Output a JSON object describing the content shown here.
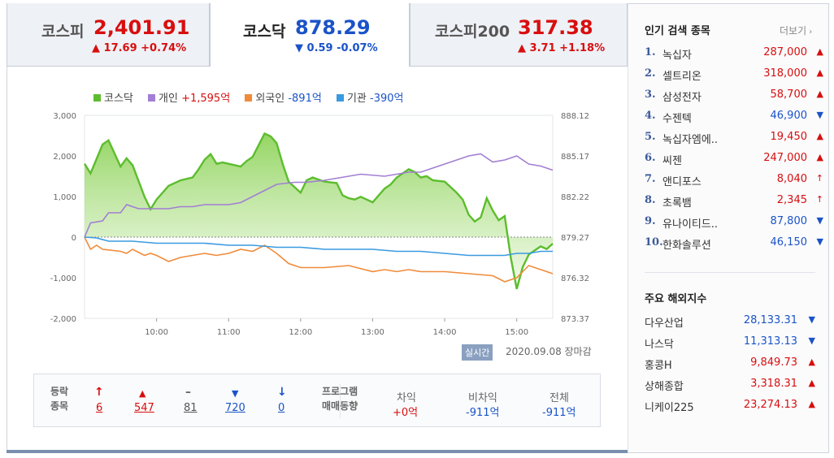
{
  "tabs": [
    {
      "name": "코스피",
      "value": "2,401.91",
      "change": "▲ 17.69 +0.74%",
      "dir": "up"
    },
    {
      "name": "코스닥",
      "value": "878.29",
      "change": "▼ 0.59 -0.07%",
      "dir": "down"
    },
    {
      "name": "코스피200",
      "value": "317.38",
      "change": "▲ 3.71 +1.18%",
      "dir": "up"
    }
  ],
  "legend": {
    "kosdaq": "코스닥",
    "individual_name": "개인",
    "individual_value": "+1,595억",
    "foreign_name": "외국인",
    "foreign_value": "-891억",
    "inst_name": "기관",
    "inst_value": "-390억"
  },
  "colors": {
    "kosdaq": "#5cbd2e",
    "individual": "#a27ed4",
    "foreign": "#f08b3a",
    "institution": "#3a9ae0",
    "up": "#d80e0e",
    "down": "#1a53c8"
  },
  "chart_data": {
    "type": "line",
    "title": "",
    "left_axis": {
      "ticks": [
        "3,000",
        "2,000",
        "1,000",
        "0",
        "-1,000",
        "-2,000"
      ],
      "ylim": [
        -2000,
        3000
      ]
    },
    "right_axis": {
      "ticks": [
        "888.12",
        "885.17",
        "882.22",
        "879.27",
        "876.32",
        "873.37"
      ],
      "ylim": [
        873.37,
        888.12
      ]
    },
    "x_ticks": [
      "10:00",
      "11:00",
      "12:00",
      "13:00",
      "14:00",
      "15:00"
    ],
    "x_range_min": [
      0,
      390
    ],
    "series": [
      {
        "name": "코스닥",
        "axis": "right",
        "x": [
          0,
          5,
          15,
          20,
          30,
          35,
          40,
          50,
          55,
          60,
          70,
          80,
          90,
          95,
          100,
          105,
          110,
          115,
          120,
          130,
          135,
          140,
          150,
          155,
          160,
          165,
          170,
          180,
          185,
          190,
          200,
          210,
          215,
          220,
          225,
          230,
          240,
          245,
          250,
          255,
          260,
          270,
          275,
          280,
          285,
          290,
          300,
          305,
          310,
          315,
          320,
          325,
          330,
          335,
          340,
          345,
          350,
          355,
          360,
          365,
          370,
          375,
          380,
          385,
          390
        ],
        "y": [
          884.6,
          883.9,
          886.0,
          886.3,
          884.4,
          885.0,
          884.5,
          882.2,
          881.3,
          882.0,
          883.0,
          883.4,
          883.6,
          884.2,
          884.9,
          885.3,
          884.6,
          884.7,
          884.6,
          884.4,
          884.8,
          885.1,
          886.8,
          886.6,
          886.1,
          884.6,
          883.3,
          882.5,
          883.4,
          883.6,
          883.3,
          883.2,
          882.3,
          882.1,
          882.0,
          882.2,
          881.8,
          882.3,
          882.8,
          883.1,
          883.6,
          884.2,
          884.0,
          883.6,
          883.7,
          883.4,
          883.3,
          882.9,
          882.5,
          882.0,
          880.9,
          880.4,
          880.7,
          882.1,
          881.2,
          880.5,
          880.8,
          877.8,
          875.5,
          877.1,
          878.0,
          878.3,
          878.6,
          878.4,
          878.8
        ],
        "color": "#5cbd2e"
      },
      {
        "name": "개인",
        "axis": "left",
        "x": [
          0,
          5,
          15,
          20,
          30,
          35,
          45,
          55,
          65,
          70,
          80,
          90,
          100,
          120,
          130,
          140,
          160,
          175,
          185,
          200,
          210,
          230,
          250,
          270,
          280,
          300,
          320,
          330,
          340,
          350,
          360,
          370,
          380,
          390
        ],
        "y": [
          0,
          350,
          400,
          600,
          600,
          800,
          700,
          700,
          700,
          700,
          750,
          750,
          800,
          800,
          850,
          1000,
          1300,
          1350,
          1350,
          1400,
          1450,
          1550,
          1500,
          1600,
          1600,
          1800,
          2000,
          2050,
          1850,
          1900,
          2000,
          1800,
          1750,
          1650
        ],
        "color": "#a27ed4"
      },
      {
        "name": "외국인",
        "axis": "left",
        "x": [
          0,
          5,
          10,
          15,
          30,
          35,
          40,
          50,
          55,
          60,
          70,
          80,
          90,
          100,
          110,
          120,
          130,
          140,
          150,
          160,
          170,
          180,
          200,
          220,
          240,
          250,
          260,
          270,
          280,
          300,
          320,
          340,
          350,
          360,
          370,
          380,
          390
        ],
        "y": [
          0,
          -300,
          -200,
          -300,
          -350,
          -400,
          -300,
          -450,
          -400,
          -450,
          -600,
          -500,
          -450,
          -400,
          -450,
          -400,
          -300,
          -350,
          -200,
          -400,
          -650,
          -750,
          -750,
          -700,
          -850,
          -800,
          -850,
          -800,
          -850,
          -850,
          -900,
          -950,
          -1100,
          -1000,
          -700,
          -800,
          -900
        ],
        "color": "#f08b3a"
      },
      {
        "name": "기관",
        "axis": "left",
        "x": [
          0,
          10,
          20,
          40,
          60,
          80,
          100,
          120,
          140,
          160,
          180,
          200,
          220,
          240,
          260,
          280,
          300,
          320,
          340,
          350,
          360,
          370,
          380,
          390
        ],
        "y": [
          0,
          -20,
          -100,
          -100,
          -150,
          -150,
          -150,
          -200,
          -200,
          -250,
          -250,
          -300,
          -300,
          -300,
          -350,
          -350,
          -400,
          -450,
          -450,
          -450,
          -400,
          -400,
          -350,
          -350
        ],
        "color": "#3a9ae0"
      }
    ]
  },
  "realtime": {
    "badge": "실시간",
    "datetime": "2020.09.08 장마감"
  },
  "breadth": {
    "label_line1": "등락",
    "label_line2": "종목",
    "upper_limit": "6",
    "rise": "547",
    "flat": "81",
    "fall": "720",
    "lower_limit": "0"
  },
  "program": {
    "label_line1": "프로그램",
    "label_line2": "매매동향",
    "arb_label": "차익",
    "arb_value": "+0억",
    "nonarb_label": "비차익",
    "nonarb_value": "-911억",
    "total_label": "전체",
    "total_value": "-911억"
  },
  "popular": {
    "title": "인기 검색 종목",
    "more": "더보기",
    "items": [
      {
        "rank": "1.",
        "name": "녹십자",
        "price": "287,000",
        "dir": "up",
        "icon": "▲"
      },
      {
        "rank": "2.",
        "name": "셀트리온",
        "price": "318,000",
        "dir": "up",
        "icon": "▲"
      },
      {
        "rank": "3.",
        "name": "삼성전자",
        "price": "58,700",
        "dir": "up",
        "icon": "▲"
      },
      {
        "rank": "4.",
        "name": "수젠텍",
        "price": "46,900",
        "dir": "down",
        "icon": "▼"
      },
      {
        "rank": "5.",
        "name": "녹십자엠에..",
        "price": "19,450",
        "dir": "up",
        "icon": "▲"
      },
      {
        "rank": "6.",
        "name": "씨젠",
        "price": "247,000",
        "dir": "up",
        "icon": "▲"
      },
      {
        "rank": "7.",
        "name": "앤디포스",
        "price": "8,040",
        "dir": "up",
        "icon": "↑"
      },
      {
        "rank": "8.",
        "name": "초록뱀",
        "price": "2,345",
        "dir": "up",
        "icon": "↑"
      },
      {
        "rank": "9.",
        "name": "유나이티드..",
        "price": "87,800",
        "dir": "down",
        "icon": "▼"
      },
      {
        "rank": "10.",
        "name": "한화솔루션",
        "price": "46,150",
        "dir": "down",
        "icon": "▼"
      }
    ]
  },
  "overseas": {
    "title": "주요 해외지수",
    "items": [
      {
        "name": "다우산업",
        "value": "28,133.31",
        "dir": "down",
        "icon": "▼"
      },
      {
        "name": "나스닥",
        "value": "11,313.13",
        "dir": "down",
        "icon": "▼"
      },
      {
        "name": "홍콩H",
        "value": "9,849.73",
        "dir": "up",
        "icon": "▲"
      },
      {
        "name": "상해종합",
        "value": "3,318.31",
        "dir": "up",
        "icon": "▲"
      },
      {
        "name": "니케이225",
        "value": "23,274.13",
        "dir": "up",
        "icon": "▲"
      }
    ]
  }
}
